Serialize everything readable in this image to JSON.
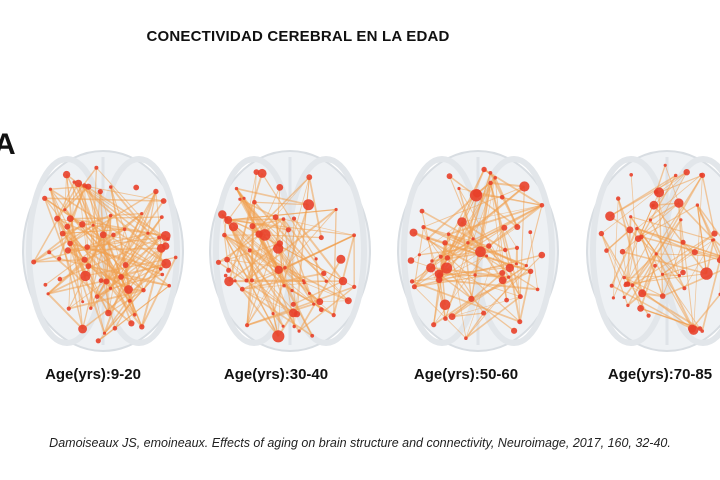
{
  "title": "CONECTIVIDAD CEREBRAL EN LA EDAD",
  "panel_letter": "A",
  "panels": [
    {
      "label": "Age(yrs):9-20",
      "seed": 11,
      "nodes": 70,
      "edges": 150
    },
    {
      "label": "Age(yrs):30-40",
      "seed": 23,
      "nodes": 64,
      "edges": 130
    },
    {
      "label": "Age(yrs):50-60",
      "seed": 37,
      "nodes": 62,
      "edges": 120
    },
    {
      "label": "Age(yrs):70-85",
      "seed": 53,
      "nodes": 58,
      "edges": 100
    }
  ],
  "citation": "Damoiseaux JS, emoineaux. Effects of aging on brain structure and connectivity, Neuroimage, 2017, 160, 32-40.",
  "colors": {
    "node": "#e8402a",
    "edge": "#f0a050",
    "brain": "#d8dde2"
  }
}
